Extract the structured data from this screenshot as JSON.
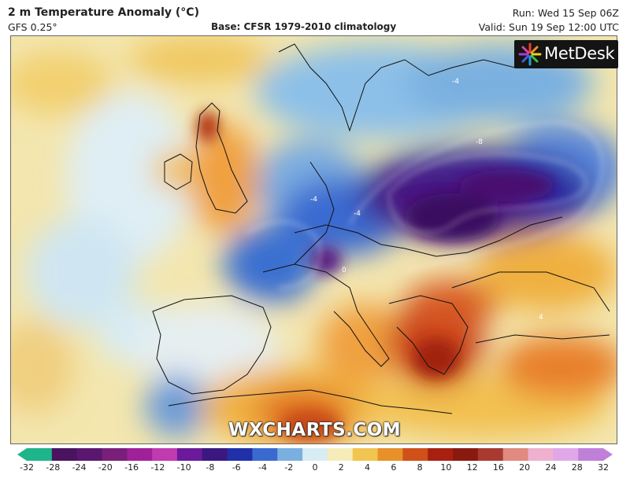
{
  "header": {
    "title": "2 m Temperature Anomaly (°C)",
    "model": "GFS 0.25°",
    "base": "Base: CFSR 1979-2010 climatology",
    "run": "Run: Wed 15 Sep 06Z",
    "valid": "Valid: Sun 19 Sep 12:00 UTC"
  },
  "branding": {
    "logo_text": "MetDesk",
    "watermark": "WXCHARTS.COM"
  },
  "map": {
    "region": "Europe",
    "contour_labels": [
      "-8",
      "-4",
      "-4",
      "-4",
      "0",
      "4"
    ]
  },
  "legend": {
    "ticks": [
      "-32",
      "-28",
      "-24",
      "-20",
      "-16",
      "-12",
      "-10",
      "-8",
      "-6",
      "-4",
      "-2",
      "0",
      "2",
      "4",
      "6",
      "8",
      "10",
      "12",
      "16",
      "20",
      "24",
      "28",
      "32"
    ],
    "colors": [
      "#1fb58a",
      "#4a1360",
      "#5a1770",
      "#7a1f7a",
      "#a0209a",
      "#c03ab0",
      "#6a1a9a",
      "#3a1880",
      "#2030a8",
      "#3a6ad0",
      "#7ab0e0",
      "#d8ecf4",
      "#f6ecb8",
      "#f2c450",
      "#e8902a",
      "#d0501a",
      "#a82010",
      "#8a1a10",
      "#a83a30",
      "#e08a80",
      "#f0b0d0",
      "#e0a8e8",
      "#c080d8"
    ]
  }
}
